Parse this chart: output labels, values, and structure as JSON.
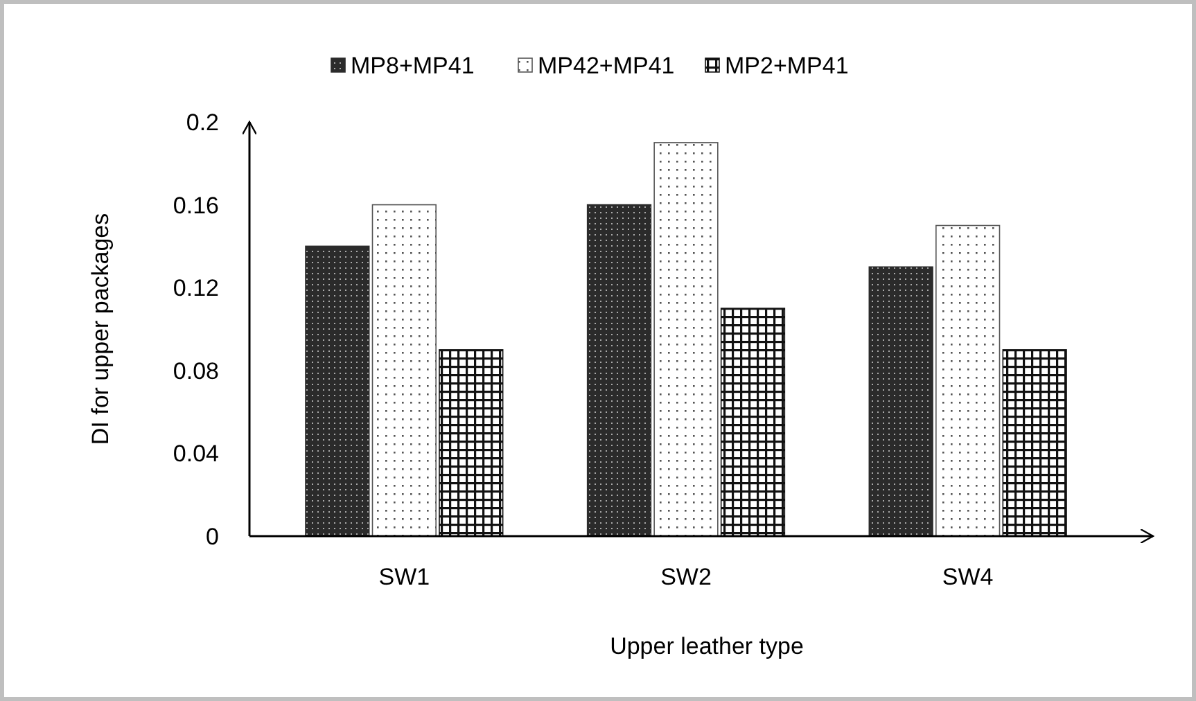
{
  "chart_data": {
    "type": "bar",
    "xlabel": "Upper leather type",
    "ylabel": "DI for upper packages",
    "categories": [
      "SW1",
      "SW2",
      "SW4"
    ],
    "series": [
      {
        "name": "MP8+MP41",
        "color": "#2b2b2b",
        "values": [
          0.14,
          0.16,
          0.13
        ]
      },
      {
        "name": "MP42+MP41",
        "color": "#555555",
        "values": [
          0.16,
          0.19,
          0.15
        ]
      },
      {
        "name": "MP2+MP41",
        "color": "#111111",
        "values": [
          0.09,
          0.11,
          0.09
        ]
      }
    ],
    "ylim": [
      0,
      0.2
    ],
    "yticks": [
      0,
      0.04,
      0.08,
      0.12,
      0.16,
      0.2
    ],
    "legend": "top",
    "grid": false
  }
}
